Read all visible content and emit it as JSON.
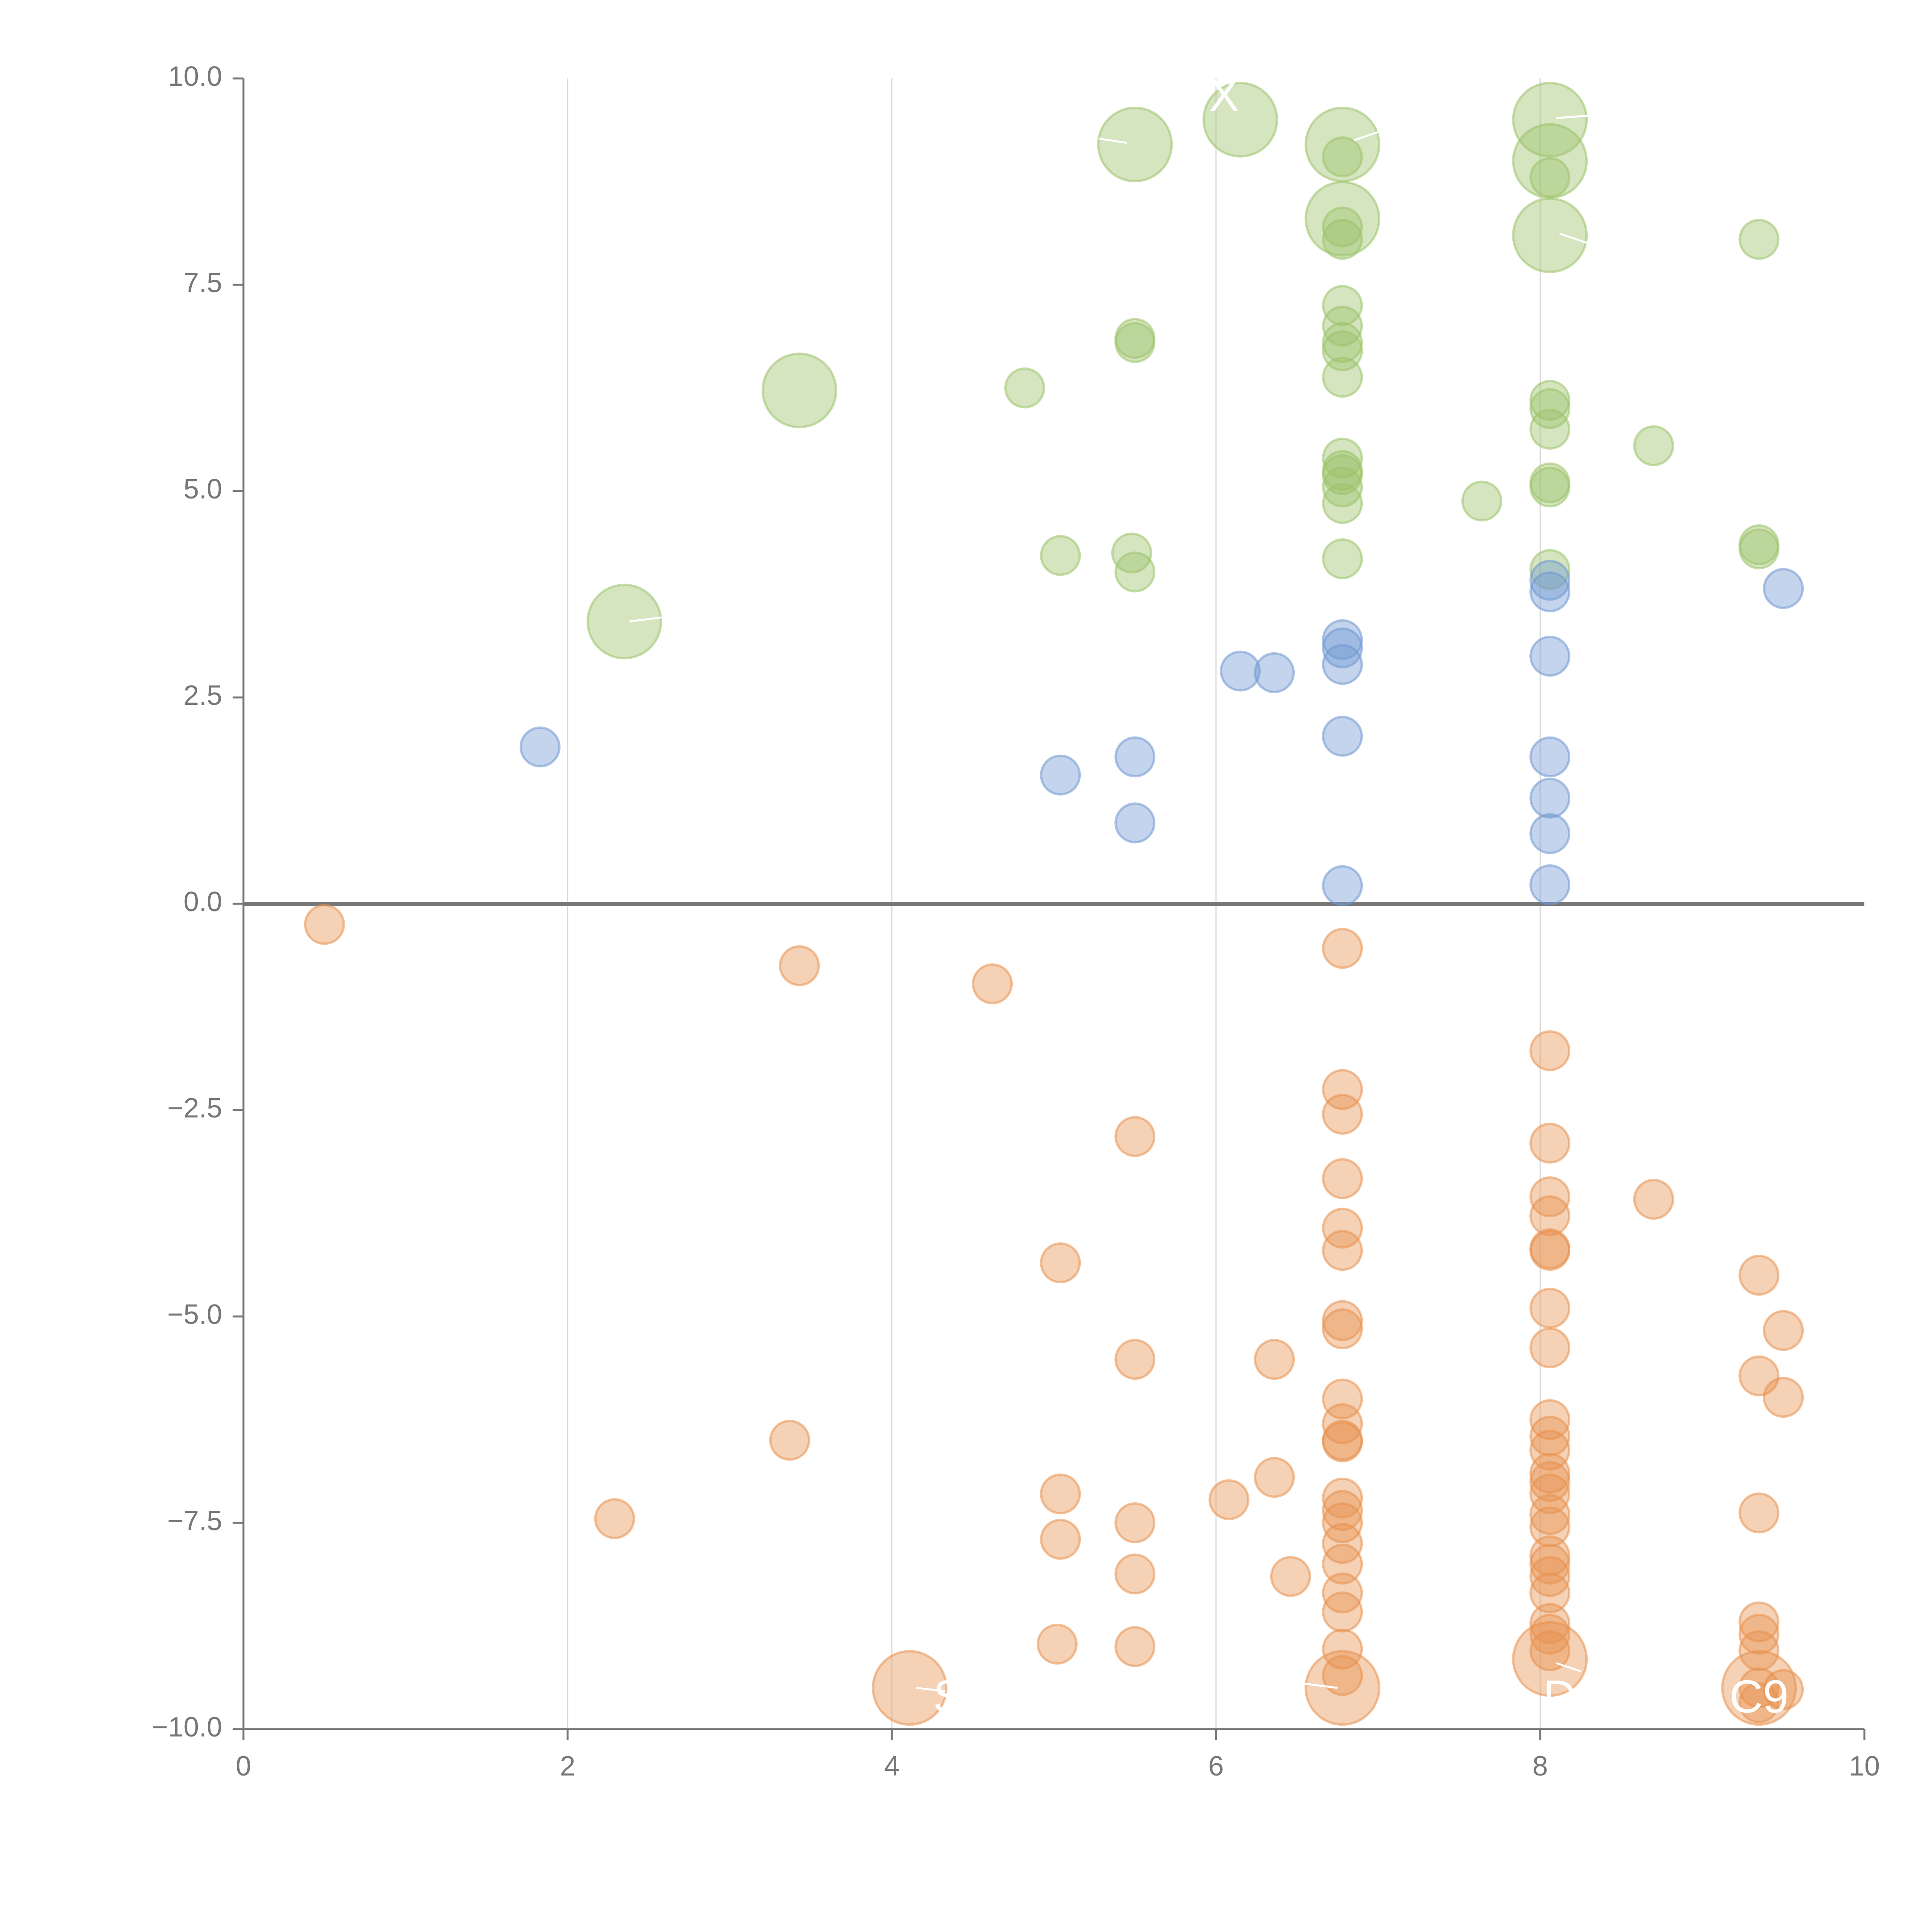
{
  "chart_data": {
    "type": "scatter",
    "title": "",
    "xlabel": "",
    "ylabel": "",
    "xlim": [
      0,
      10
    ],
    "ylim": [
      -10,
      10
    ],
    "x_ticks": [
      0,
      2,
      4,
      6,
      8,
      10
    ],
    "x_tick_labels": [
      "0",
      "2",
      "4",
      "6",
      "8",
      "10"
    ],
    "y_ticks": [
      10,
      7.5,
      5,
      2.5,
      0,
      -2.5,
      -5,
      -7.5,
      -10
    ],
    "y_tick_labels": [
      "10.0",
      "7.5",
      "5.0",
      "2.5",
      "0.0",
      "−2.5",
      "−5.0",
      "−7.5",
      "−10.0"
    ],
    "vertical_gridlines_at": [
      2,
      4,
      6,
      8
    ],
    "reference_line_y": 0,
    "grid": true,
    "legend": "none",
    "annotations": [
      "X",
      "S",
      "D",
      "C9"
    ],
    "series": [
      {
        "name": "green",
        "color": "#9cc26a",
        "points": [
          [
            5.5,
            9.2,
            3
          ],
          [
            6.15,
            9.5,
            3
          ],
          [
            6.78,
            9.2,
            3
          ],
          [
            6.78,
            9.05,
            1
          ],
          [
            8.06,
            9.5,
            3
          ],
          [
            8.06,
            9.0,
            3
          ],
          [
            8.06,
            8.8,
            1
          ],
          [
            6.78,
            8.3,
            3
          ],
          [
            6.78,
            8.2,
            1
          ],
          [
            6.78,
            8.05,
            1
          ],
          [
            8.06,
            8.1,
            3
          ],
          [
            9.35,
            8.05,
            1
          ],
          [
            6.78,
            7.25,
            1
          ],
          [
            6.78,
            7.0,
            1
          ],
          [
            6.78,
            6.8,
            1
          ],
          [
            6.78,
            6.7,
            1
          ],
          [
            6.78,
            6.38,
            1
          ],
          [
            5.5,
            6.85,
            1
          ],
          [
            5.5,
            6.8,
            1
          ],
          [
            3.43,
            6.22,
            3
          ],
          [
            4.82,
            6.25,
            1
          ],
          [
            8.06,
            6.1,
            1
          ],
          [
            8.06,
            6.0,
            1
          ],
          [
            8.06,
            5.75,
            1
          ],
          [
            8.7,
            5.55,
            1
          ],
          [
            6.78,
            5.4,
            1
          ],
          [
            6.78,
            5.25,
            1
          ],
          [
            6.78,
            5.2,
            1
          ],
          [
            6.78,
            5.05,
            1
          ],
          [
            6.78,
            4.85,
            1
          ],
          [
            8.06,
            5.1,
            1
          ],
          [
            8.06,
            5.05,
            1
          ],
          [
            7.64,
            4.88,
            1
          ],
          [
            9.35,
            4.35,
            1
          ],
          [
            9.35,
            4.3,
            1
          ],
          [
            5.04,
            4.22,
            1
          ],
          [
            5.48,
            4.25,
            1
          ],
          [
            5.5,
            4.02,
            1
          ],
          [
            6.78,
            4.18,
            1
          ],
          [
            8.06,
            4.05,
            1
          ],
          [
            2.35,
            3.42,
            3
          ]
        ]
      },
      {
        "name": "blue",
        "color": "#6f98d2",
        "points": [
          [
            9.5,
            3.82,
            1
          ],
          [
            8.06,
            3.92,
            1
          ],
          [
            8.06,
            3.78,
            1
          ],
          [
            6.78,
            3.2,
            1
          ],
          [
            6.78,
            3.1,
            1
          ],
          [
            6.78,
            2.9,
            1
          ],
          [
            8.06,
            3.0,
            1
          ],
          [
            6.15,
            2.82,
            1
          ],
          [
            6.36,
            2.8,
            1
          ],
          [
            6.78,
            2.03,
            1
          ],
          [
            1.83,
            1.9,
            1
          ],
          [
            5.04,
            1.56,
            1
          ],
          [
            5.5,
            1.78,
            1
          ],
          [
            8.06,
            1.78,
            1
          ],
          [
            8.06,
            1.28,
            1
          ],
          [
            5.5,
            0.98,
            1
          ],
          [
            8.06,
            0.85,
            1
          ],
          [
            6.78,
            0.22,
            1
          ],
          [
            8.06,
            0.23,
            1
          ]
        ]
      },
      {
        "name": "orange",
        "color": "#e8924e",
        "points": [
          [
            0.5,
            -0.25,
            1
          ],
          [
            3.43,
            -0.75,
            1
          ],
          [
            4.62,
            -0.97,
            1
          ],
          [
            6.78,
            -0.54,
            1
          ],
          [
            8.06,
            -1.78,
            1
          ],
          [
            6.78,
            -2.25,
            1
          ],
          [
            6.78,
            -2.55,
            1
          ],
          [
            5.5,
            -2.82,
            1
          ],
          [
            8.06,
            -2.9,
            1
          ],
          [
            6.78,
            -3.33,
            1
          ],
          [
            8.06,
            -3.55,
            1
          ],
          [
            8.06,
            -3.78,
            1
          ],
          [
            8.7,
            -3.58,
            1
          ],
          [
            6.78,
            -3.93,
            1
          ],
          [
            6.78,
            -4.2,
            1
          ],
          [
            8.06,
            -4.18,
            1
          ],
          [
            8.06,
            -4.2,
            1
          ],
          [
            5.04,
            -4.35,
            1
          ],
          [
            9.35,
            -4.5,
            1
          ],
          [
            8.06,
            -4.9,
            1
          ],
          [
            6.78,
            -5.05,
            1
          ],
          [
            6.78,
            -5.15,
            1
          ],
          [
            9.5,
            -5.17,
            1
          ],
          [
            8.06,
            -5.38,
            1
          ],
          [
            5.5,
            -5.52,
            1
          ],
          [
            6.36,
            -5.52,
            1
          ],
          [
            9.35,
            -5.72,
            1
          ],
          [
            9.5,
            -5.98,
            1
          ],
          [
            6.78,
            -6.0,
            1
          ],
          [
            6.78,
            -6.3,
            1
          ],
          [
            6.78,
            -6.5,
            1
          ],
          [
            6.78,
            -6.52,
            1
          ],
          [
            3.37,
            -6.5,
            1
          ],
          [
            8.06,
            -6.25,
            1
          ],
          [
            8.06,
            -6.45,
            1
          ],
          [
            8.06,
            -6.62,
            1
          ],
          [
            8.06,
            -6.9,
            1
          ],
          [
            8.06,
            -7.0,
            1
          ],
          [
            8.06,
            -7.15,
            1
          ],
          [
            6.36,
            -6.95,
            1
          ],
          [
            6.08,
            -7.22,
            1
          ],
          [
            5.04,
            -7.15,
            1
          ],
          [
            6.78,
            -7.2,
            1
          ],
          [
            6.78,
            -7.35,
            1
          ],
          [
            6.78,
            -7.5,
            1
          ],
          [
            8.06,
            -7.4,
            1
          ],
          [
            8.06,
            -7.55,
            1
          ],
          [
            2.29,
            -7.45,
            1
          ],
          [
            5.5,
            -7.5,
            1
          ],
          [
            9.35,
            -7.38,
            1
          ],
          [
            5.04,
            -7.7,
            1
          ],
          [
            6.78,
            -7.75,
            1
          ],
          [
            6.78,
            -8.0,
            1
          ],
          [
            8.06,
            -7.9,
            1
          ],
          [
            8.06,
            -8.0,
            1
          ],
          [
            8.06,
            -8.15,
            1
          ],
          [
            5.5,
            -8.12,
            1
          ],
          [
            6.46,
            -8.15,
            1
          ],
          [
            6.78,
            -8.35,
            1
          ],
          [
            6.78,
            -8.58,
            1
          ],
          [
            8.06,
            -8.35,
            1
          ],
          [
            8.06,
            -8.72,
            1
          ],
          [
            8.06,
            -8.85,
            1
          ],
          [
            9.35,
            -8.7,
            1
          ],
          [
            9.35,
            -8.85,
            1
          ],
          [
            5.02,
            -8.97,
            1
          ],
          [
            5.5,
            -9.0,
            1
          ],
          [
            6.78,
            -9.03,
            1
          ],
          [
            6.78,
            -9.35,
            1
          ],
          [
            8.06,
            -9.05,
            1
          ],
          [
            8.06,
            -9.15,
            3
          ],
          [
            9.35,
            -9.05,
            1
          ],
          [
            4.11,
            -9.5,
            3
          ],
          [
            6.78,
            -9.5,
            3
          ],
          [
            9.35,
            -9.5,
            3
          ],
          [
            9.35,
            -9.5,
            1
          ],
          [
            9.5,
            -9.52,
            1
          ],
          [
            9.35,
            -9.68,
            1
          ]
        ]
      }
    ]
  }
}
